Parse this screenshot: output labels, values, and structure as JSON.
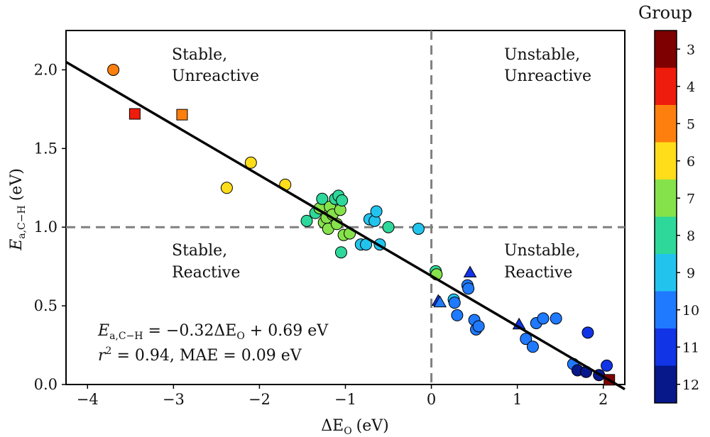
{
  "chart_data": {
    "type": "scatter",
    "title": "",
    "xlabel": "ΔE",
    "xlabel_sub": "O",
    "xlabel_unit": "(eV)",
    "ylabel": "E",
    "ylabel_sub": "a,C−H",
    "ylabel_unit": "(eV)",
    "xlim": [
      -4.25,
      2.25
    ],
    "ylim": [
      0.0,
      2.25
    ],
    "xticks": [
      -4,
      -3,
      -2,
      -1,
      0,
      1,
      2
    ],
    "xtick_labels": [
      "−4",
      "−3",
      "−2",
      "−1",
      "0",
      "1",
      "2"
    ],
    "yticks": [
      0.0,
      0.5,
      1.0,
      1.5,
      2.0
    ],
    "ytick_labels": [
      "0.0",
      "0.5",
      "1.0",
      "1.5",
      "2.0"
    ],
    "grid": false,
    "reference_lines": {
      "x": 0.0,
      "y": 1.0,
      "style": "dashed",
      "color": "#808080"
    },
    "fit_line": {
      "slope": -0.32,
      "intercept": 0.69,
      "x_range": [
        -4.25,
        2.25
      ]
    },
    "annotations": {
      "equation_lhs": "E",
      "equation_lhs_sub": "a,C−H",
      "equation_rhs": " = −0.32ΔE",
      "equation_rhs_sub": "O",
      "equation_tail": " + 0.69 eV",
      "stats_r": "r",
      "stats_sup": "2",
      "stats_tail": " = 0.94, MAE = 0.09 eV"
    },
    "regions": [
      {
        "line1": "Stable,",
        "line2": "Unreactive"
      },
      {
        "line1": "Unstable,",
        "line2": "Unreactive"
      },
      {
        "line1": "Stable,",
        "line2": "Reactive"
      },
      {
        "line1": "Unstable,",
        "line2": "Reactive"
      }
    ],
    "colorbar": {
      "title": "Group",
      "labels": [
        "3",
        "4",
        "5",
        "6",
        "7",
        "8",
        "9",
        "10",
        "11",
        "12"
      ],
      "colors": [
        "#7f0000",
        "#ee1c0c",
        "#ff7f0e",
        "#ffdd1a",
        "#86e24a",
        "#2ed89a",
        "#22c4ee",
        "#1f7aff",
        "#1034e6",
        "#06188a"
      ]
    },
    "points": [
      {
        "x": -3.7,
        "y": 2.0,
        "group": 5,
        "marker": "circle"
      },
      {
        "x": -3.45,
        "y": 1.72,
        "group": 4,
        "marker": "square"
      },
      {
        "x": -2.9,
        "y": 1.715,
        "group": 5,
        "marker": "square"
      },
      {
        "x": -2.1,
        "y": 1.41,
        "group": 6,
        "marker": "circle"
      },
      {
        "x": -2.38,
        "y": 1.25,
        "group": 6,
        "marker": "circle"
      },
      {
        "x": -1.7,
        "y": 1.27,
        "group": 6,
        "marker": "circle"
      },
      {
        "x": -1.45,
        "y": 1.04,
        "group": 8,
        "marker": "circle"
      },
      {
        "x": -1.35,
        "y": 1.09,
        "group": 8,
        "marker": "circle"
      },
      {
        "x": -1.3,
        "y": 1.12,
        "group": 7,
        "marker": "circle"
      },
      {
        "x": -1.27,
        "y": 1.18,
        "group": 8,
        "marker": "circle"
      },
      {
        "x": -1.25,
        "y": 1.03,
        "group": 7,
        "marker": "circle"
      },
      {
        "x": -1.22,
        "y": 1.06,
        "group": 7,
        "marker": "circle"
      },
      {
        "x": -1.2,
        "y": 0.99,
        "group": 7,
        "marker": "circle"
      },
      {
        "x": -1.18,
        "y": 1.13,
        "group": 7,
        "marker": "circle"
      },
      {
        "x": -1.15,
        "y": 1.08,
        "group": 7,
        "marker": "circle"
      },
      {
        "x": -1.12,
        "y": 1.18,
        "group": 8,
        "marker": "circle"
      },
      {
        "x": -1.1,
        "y": 1.02,
        "group": 7,
        "marker": "circle"
      },
      {
        "x": -1.08,
        "y": 1.2,
        "group": 8,
        "marker": "circle"
      },
      {
        "x": -1.06,
        "y": 1.11,
        "group": 7,
        "marker": "circle"
      },
      {
        "x": -1.04,
        "y": 1.17,
        "group": 8,
        "marker": "circle"
      },
      {
        "x": -1.02,
        "y": 0.95,
        "group": 7,
        "marker": "circle"
      },
      {
        "x": -0.95,
        "y": 0.96,
        "group": 7,
        "marker": "circle"
      },
      {
        "x": -1.05,
        "y": 0.84,
        "group": 8,
        "marker": "circle"
      },
      {
        "x": -0.82,
        "y": 0.89,
        "group": 9,
        "marker": "circle"
      },
      {
        "x": -0.76,
        "y": 0.89,
        "group": 9,
        "marker": "circle"
      },
      {
        "x": -0.72,
        "y": 1.05,
        "group": 9,
        "marker": "circle"
      },
      {
        "x": -0.66,
        "y": 1.04,
        "group": 9,
        "marker": "circle"
      },
      {
        "x": -0.64,
        "y": 1.1,
        "group": 9,
        "marker": "circle"
      },
      {
        "x": -0.6,
        "y": 0.89,
        "group": 9,
        "marker": "circle"
      },
      {
        "x": -0.5,
        "y": 1.0,
        "group": 8,
        "marker": "circle"
      },
      {
        "x": -0.15,
        "y": 0.99,
        "group": 9,
        "marker": "circle"
      },
      {
        "x": 0.05,
        "y": 0.72,
        "group": 8,
        "marker": "circle"
      },
      {
        "x": 0.06,
        "y": 0.7,
        "group": 7,
        "marker": "circle"
      },
      {
        "x": 0.08,
        "y": 0.53,
        "group": 11,
        "marker": "triangle"
      },
      {
        "x": 0.1,
        "y": 0.52,
        "group": 10,
        "marker": "triangle"
      },
      {
        "x": 0.26,
        "y": 0.54,
        "group": 9,
        "marker": "circle"
      },
      {
        "x": 0.27,
        "y": 0.52,
        "group": 10,
        "marker": "circle"
      },
      {
        "x": 0.3,
        "y": 0.44,
        "group": 10,
        "marker": "circle"
      },
      {
        "x": 0.42,
        "y": 0.63,
        "group": 10,
        "marker": "circle"
      },
      {
        "x": 0.43,
        "y": 0.61,
        "group": 10,
        "marker": "circle"
      },
      {
        "x": 0.45,
        "y": 0.71,
        "group": 11,
        "marker": "triangle"
      },
      {
        "x": 0.5,
        "y": 0.41,
        "group": 10,
        "marker": "circle"
      },
      {
        "x": 0.52,
        "y": 0.35,
        "group": 10,
        "marker": "circle"
      },
      {
        "x": 0.55,
        "y": 0.37,
        "group": 10,
        "marker": "circle"
      },
      {
        "x": 1.02,
        "y": 0.38,
        "group": 11,
        "marker": "triangle"
      },
      {
        "x": 1.1,
        "y": 0.29,
        "group": 10,
        "marker": "circle"
      },
      {
        "x": 1.18,
        "y": 0.24,
        "group": 10,
        "marker": "circle"
      },
      {
        "x": 1.22,
        "y": 0.39,
        "group": 10,
        "marker": "circle"
      },
      {
        "x": 1.3,
        "y": 0.42,
        "group": 10,
        "marker": "circle"
      },
      {
        "x": 1.45,
        "y": 0.42,
        "group": 10,
        "marker": "circle"
      },
      {
        "x": 1.65,
        "y": 0.13,
        "group": 10,
        "marker": "circle"
      },
      {
        "x": 1.7,
        "y": 0.09,
        "group": 12,
        "marker": "circle"
      },
      {
        "x": 1.8,
        "y": 0.08,
        "group": 12,
        "marker": "circle"
      },
      {
        "x": 1.82,
        "y": 0.33,
        "group": 11,
        "marker": "circle"
      },
      {
        "x": 1.95,
        "y": 0.06,
        "group": 12,
        "marker": "circle"
      },
      {
        "x": 2.04,
        "y": 0.12,
        "group": 11,
        "marker": "circle"
      },
      {
        "x": 2.07,
        "y": 0.03,
        "group": 3,
        "marker": "square"
      }
    ]
  }
}
